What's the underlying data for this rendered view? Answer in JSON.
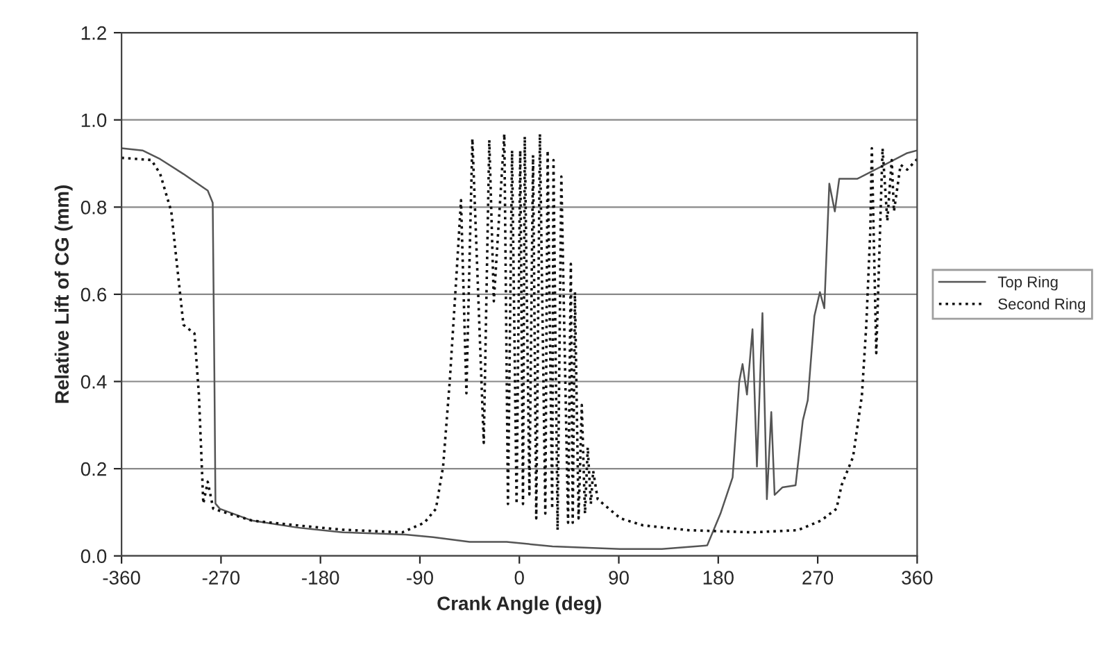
{
  "chart_data": {
    "type": "line",
    "xlabel": "Crank Angle (deg)",
    "ylabel": "Relative Lift of CG (mm)",
    "xlim": [
      -360,
      360
    ],
    "xticks": [
      -360,
      -270,
      -180,
      -90,
      0,
      90,
      180,
      270,
      360
    ],
    "ylim": [
      0,
      1.2
    ],
    "yticks": [
      {
        "value": 0,
        "label": "0.0"
      },
      0.2,
      0.4,
      0.6,
      0.8,
      {
        "value": 1,
        "label": "1.0"
      },
      1.2
    ],
    "grid": "y",
    "legend": "right",
    "series": [
      {
        "name": "Top Ring",
        "color": "#555555",
        "line_style": "solid",
        "x": [
          -360,
          -341,
          -325,
          -304,
          -282,
          -277.5,
          -276,
          -275,
          -271,
          -242,
          -201,
          -160,
          -103,
          -78,
          -45,
          -11.5,
          30,
          91,
          129,
          170,
          182,
          193,
          199,
          202,
          206,
          211,
          215,
          220,
          224,
          228,
          231,
          238,
          250,
          256.5,
          261,
          267,
          272,
          276,
          280.5,
          285.5,
          289.5,
          306,
          351,
          360
        ],
        "values": [
          0.935,
          0.93,
          0.91,
          0.876,
          0.838,
          0.81,
          0.42,
          0.12,
          0.108,
          0.081,
          0.065,
          0.054,
          0.049,
          0.043,
          0.032,
          0.032,
          0.022,
          0.016,
          0.016,
          0.024,
          0.097,
          0.18,
          0.4,
          0.44,
          0.37,
          0.52,
          0.205,
          0.557,
          0.13,
          0.33,
          0.14,
          0.157,
          0.162,
          0.31,
          0.357,
          0.55,
          0.605,
          0.568,
          0.854,
          0.79,
          0.865,
          0.865,
          0.924,
          0.93
        ]
      },
      {
        "name": "Second Ring",
        "color": "#111111",
        "line_style": "dotted",
        "x": [
          -360,
          -333,
          -325,
          -315,
          -304,
          -294,
          -290,
          -286,
          -282,
          -277,
          -242,
          -201,
          -160,
          -106,
          -86,
          -75.5,
          -69,
          -63,
          -57,
          -52.8,
          -47.9,
          -42.5,
          -32.2,
          -27.2,
          -23.1,
          -13.6,
          -10.3,
          -6.6,
          -2.5,
          0.8,
          3.3,
          4.9,
          9.1,
          12.4,
          15.3,
          18.6,
          23.5,
          25.6,
          29.7,
          30.9,
          34.6,
          38,
          44.1,
          46.6,
          48.3,
          50.3,
          53.6,
          56.5,
          59.4,
          61.9,
          64.7,
          66.8,
          70.9,
          91.5,
          112,
          153,
          211,
          252,
          273,
          287,
          291.6,
          302,
          310,
          314,
          317.6,
          319,
          323,
          328.7,
          333,
          337,
          339,
          345,
          351,
          360
        ],
        "values": [
          0.913,
          0.908,
          0.876,
          0.79,
          0.53,
          0.51,
          0.37,
          0.12,
          0.17,
          0.108,
          0.081,
          0.07,
          0.06,
          0.054,
          0.076,
          0.108,
          0.205,
          0.4,
          0.64,
          0.816,
          0.373,
          0.957,
          0.259,
          0.954,
          0.584,
          0.968,
          0.119,
          0.93,
          0.119,
          0.93,
          0.119,
          0.962,
          0.141,
          0.919,
          0.086,
          0.968,
          0.097,
          0.93,
          0.108,
          0.908,
          0.059,
          0.87,
          0.076,
          0.67,
          0.076,
          0.605,
          0.086,
          0.346,
          0.097,
          0.249,
          0.119,
          0.195,
          0.13,
          0.086,
          0.07,
          0.059,
          0.054,
          0.059,
          0.081,
          0.108,
          0.162,
          0.227,
          0.368,
          0.53,
          0.746,
          0.935,
          0.465,
          0.935,
          0.768,
          0.908,
          0.79,
          0.897,
          0.886,
          0.91
        ]
      }
    ]
  }
}
